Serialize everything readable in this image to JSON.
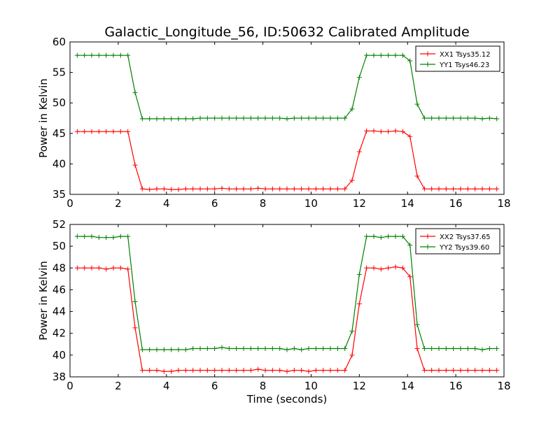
{
  "figure": {
    "title": "Galactic_Longitude_56, ID:50632 Calibrated Amplitude",
    "xlabel": "Time (seconds)"
  },
  "chart_data": [
    {
      "type": "line",
      "ylabel": "Power in Kelvin",
      "xlim": [
        0,
        18
      ],
      "ylim": [
        35,
        60
      ],
      "xticks": [
        0,
        2,
        4,
        6,
        8,
        10,
        12,
        14,
        16,
        18
      ],
      "yticks": [
        35,
        40,
        45,
        50,
        55,
        60
      ],
      "grid": false,
      "legend": "top-right",
      "series": [
        {
          "name": "XX1 Tsys35.12",
          "color": "#ff0000",
          "marker": "+",
          "x": [
            0.3,
            0.6,
            0.9,
            1.2,
            1.5,
            1.8,
            2.1,
            2.4,
            2.7,
            3.0,
            3.3,
            3.6,
            3.9,
            4.2,
            4.5,
            4.8,
            5.1,
            5.4,
            5.7,
            6.0,
            6.3,
            6.6,
            6.9,
            7.2,
            7.5,
            7.8,
            8.1,
            8.4,
            8.7,
            9.0,
            9.3,
            9.6,
            9.9,
            10.2,
            10.5,
            10.8,
            11.1,
            11.4,
            11.7,
            12.0,
            12.3,
            12.6,
            12.9,
            13.2,
            13.5,
            13.8,
            14.1,
            14.4,
            14.7,
            15.0,
            15.3,
            15.6,
            15.9,
            16.2,
            16.5,
            16.8,
            17.1,
            17.4,
            17.7
          ],
          "y": [
            45.3,
            45.3,
            45.3,
            45.3,
            45.3,
            45.3,
            45.3,
            45.3,
            39.8,
            35.9,
            35.8,
            35.9,
            35.9,
            35.8,
            35.8,
            35.9,
            35.9,
            35.9,
            35.9,
            35.9,
            36.0,
            35.9,
            35.9,
            35.9,
            35.9,
            36.0,
            35.9,
            35.9,
            35.9,
            35.9,
            35.9,
            35.9,
            35.9,
            35.9,
            35.9,
            35.9,
            35.9,
            35.9,
            37.3,
            42.0,
            45.4,
            45.4,
            45.3,
            45.3,
            45.4,
            45.3,
            44.5,
            38.0,
            35.9,
            35.9,
            35.9,
            35.9,
            35.9,
            35.9,
            35.9,
            35.9,
            35.9,
            35.9,
            35.9
          ]
        },
        {
          "name": "YY1 Tsys46.23",
          "color": "#008000",
          "marker": "+",
          "x": [
            0.3,
            0.6,
            0.9,
            1.2,
            1.5,
            1.8,
            2.1,
            2.4,
            2.7,
            3.0,
            3.3,
            3.6,
            3.9,
            4.2,
            4.5,
            4.8,
            5.1,
            5.4,
            5.7,
            6.0,
            6.3,
            6.6,
            6.9,
            7.2,
            7.5,
            7.8,
            8.1,
            8.4,
            8.7,
            9.0,
            9.3,
            9.6,
            9.9,
            10.2,
            10.5,
            10.8,
            11.1,
            11.4,
            11.7,
            12.0,
            12.3,
            12.6,
            12.9,
            13.2,
            13.5,
            13.8,
            14.1,
            14.4,
            14.7,
            15.0,
            15.3,
            15.6,
            15.9,
            16.2,
            16.5,
            16.8,
            17.1,
            17.4,
            17.7
          ],
          "y": [
            57.8,
            57.8,
            57.8,
            57.8,
            57.8,
            57.8,
            57.8,
            57.8,
            51.7,
            47.4,
            47.4,
            47.4,
            47.4,
            47.4,
            47.4,
            47.4,
            47.4,
            47.5,
            47.5,
            47.5,
            47.5,
            47.5,
            47.5,
            47.5,
            47.5,
            47.5,
            47.5,
            47.5,
            47.5,
            47.4,
            47.5,
            47.5,
            47.5,
            47.5,
            47.5,
            47.5,
            47.5,
            47.5,
            49.0,
            54.2,
            57.8,
            57.8,
            57.8,
            57.8,
            57.8,
            57.8,
            56.9,
            49.8,
            47.5,
            47.5,
            47.5,
            47.5,
            47.5,
            47.5,
            47.5,
            47.5,
            47.4,
            47.5,
            47.4
          ]
        }
      ]
    },
    {
      "type": "line",
      "ylabel": "Power in Kelvin",
      "xlabel": "Time (seconds)",
      "xlim": [
        0,
        18
      ],
      "ylim": [
        38,
        52
      ],
      "xticks": [
        0,
        2,
        4,
        6,
        8,
        10,
        12,
        14,
        16,
        18
      ],
      "yticks": [
        38,
        40,
        42,
        44,
        46,
        48,
        50,
        52
      ],
      "grid": false,
      "legend": "top-right",
      "series": [
        {
          "name": "XX2 Tsys37.65",
          "color": "#ff0000",
          "marker": "+",
          "x": [
            0.3,
            0.6,
            0.9,
            1.2,
            1.5,
            1.8,
            2.1,
            2.4,
            2.7,
            3.0,
            3.3,
            3.6,
            3.9,
            4.2,
            4.5,
            4.8,
            5.1,
            5.4,
            5.7,
            6.0,
            6.3,
            6.6,
            6.9,
            7.2,
            7.5,
            7.8,
            8.1,
            8.4,
            8.7,
            9.0,
            9.3,
            9.6,
            9.9,
            10.2,
            10.5,
            10.8,
            11.1,
            11.4,
            11.7,
            12.0,
            12.3,
            12.6,
            12.9,
            13.2,
            13.5,
            13.8,
            14.1,
            14.4,
            14.7,
            15.0,
            15.3,
            15.6,
            15.9,
            16.2,
            16.5,
            16.8,
            17.1,
            17.4,
            17.7
          ],
          "y": [
            48.0,
            48.0,
            48.0,
            48.0,
            47.9,
            48.0,
            48.0,
            47.9,
            42.5,
            38.6,
            38.6,
            38.6,
            38.5,
            38.5,
            38.6,
            38.6,
            38.6,
            38.6,
            38.6,
            38.6,
            38.6,
            38.6,
            38.6,
            38.6,
            38.6,
            38.7,
            38.6,
            38.6,
            38.6,
            38.5,
            38.6,
            38.6,
            38.5,
            38.6,
            38.6,
            38.6,
            38.6,
            38.6,
            40.0,
            44.7,
            48.0,
            48.0,
            47.9,
            48.0,
            48.1,
            48.0,
            47.2,
            40.6,
            38.6,
            38.6,
            38.6,
            38.6,
            38.6,
            38.6,
            38.6,
            38.6,
            38.6,
            38.6,
            38.6
          ]
        },
        {
          "name": "YY2 Tsys39.60",
          "color": "#008000",
          "marker": "+",
          "x": [
            0.3,
            0.6,
            0.9,
            1.2,
            1.5,
            1.8,
            2.1,
            2.4,
            2.7,
            3.0,
            3.3,
            3.6,
            3.9,
            4.2,
            4.5,
            4.8,
            5.1,
            5.4,
            5.7,
            6.0,
            6.3,
            6.6,
            6.9,
            7.2,
            7.5,
            7.8,
            8.1,
            8.4,
            8.7,
            9.0,
            9.3,
            9.6,
            9.9,
            10.2,
            10.5,
            10.8,
            11.1,
            11.4,
            11.7,
            12.0,
            12.3,
            12.6,
            12.9,
            13.2,
            13.5,
            13.8,
            14.1,
            14.4,
            14.7,
            15.0,
            15.3,
            15.6,
            15.9,
            16.2,
            16.5,
            16.8,
            17.1,
            17.4,
            17.7
          ],
          "y": [
            50.9,
            50.9,
            50.9,
            50.8,
            50.8,
            50.8,
            50.9,
            50.9,
            44.9,
            40.5,
            40.5,
            40.5,
            40.5,
            40.5,
            40.5,
            40.5,
            40.6,
            40.6,
            40.6,
            40.6,
            40.7,
            40.6,
            40.6,
            40.6,
            40.6,
            40.6,
            40.6,
            40.6,
            40.6,
            40.5,
            40.6,
            40.5,
            40.6,
            40.6,
            40.6,
            40.6,
            40.6,
            40.6,
            42.2,
            47.4,
            50.9,
            50.9,
            50.8,
            50.9,
            50.9,
            50.9,
            50.1,
            42.8,
            40.6,
            40.6,
            40.6,
            40.6,
            40.6,
            40.6,
            40.6,
            40.6,
            40.5,
            40.6,
            40.6
          ]
        }
      ]
    }
  ]
}
